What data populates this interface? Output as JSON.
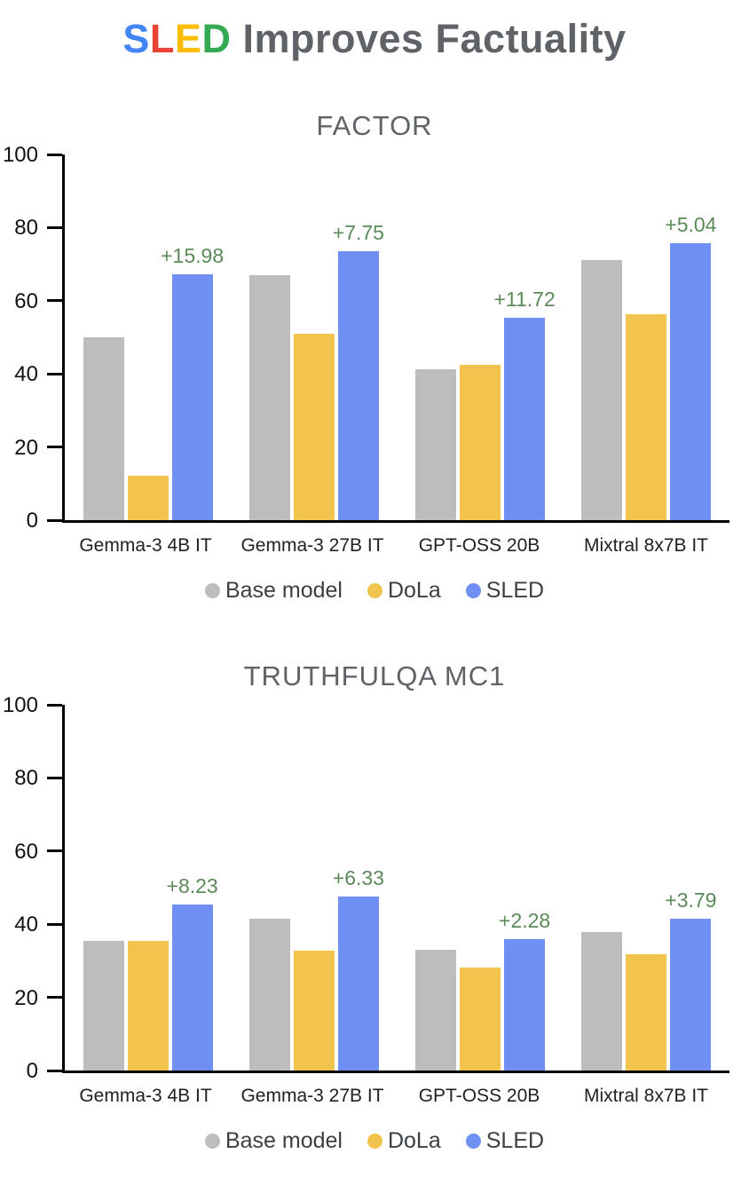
{
  "title": {
    "colored_letters": [
      {
        "char": "S",
        "color": "#4285F4"
      },
      {
        "char": "L",
        "color": "#EA4335"
      },
      {
        "char": "E",
        "color": "#FBBC04"
      },
      {
        "char": "D",
        "color": "#34A853"
      }
    ],
    "rest": " Improves Factuality"
  },
  "colors": {
    "base": "#BDBDBD",
    "dola": "#F2C44D",
    "sled": "#6F8FF2",
    "annotation": "#5B8A58",
    "axis": "#000000",
    "title_text": "#5F6368"
  },
  "legend": [
    {
      "label": "Base model",
      "color_key": "base"
    },
    {
      "label": "DoLa",
      "color_key": "dola"
    },
    {
      "label": "SLED",
      "color_key": "sled"
    }
  ],
  "chart_data": [
    {
      "type": "bar",
      "title": "FACTOR",
      "categories": [
        "Gemma-3 4B IT",
        "Gemma-3 27B IT",
        "GPT-OSS 20B",
        "Mixtral 8x7B IT"
      ],
      "series": [
        {
          "name": "Base model",
          "values": [
            50.1,
            67.1,
            41.2,
            71.0
          ]
        },
        {
          "name": "DoLa",
          "values": [
            12.2,
            51.0,
            42.6,
            56.4
          ]
        },
        {
          "name": "SLED",
          "values": [
            67.2,
            73.6,
            55.4,
            75.8
          ]
        }
      ],
      "annotations": [
        "+15.98",
        "+7.75",
        "+11.72",
        "+5.04"
      ],
      "xlabel": "",
      "ylabel": "",
      "ylim": [
        0,
        100
      ],
      "yticks": [
        0,
        20,
        40,
        60,
        80,
        100
      ],
      "grid": false,
      "legend_position": "bottom"
    },
    {
      "type": "bar",
      "title": "TRUTHFULQA MC1",
      "categories": [
        "Gemma-3 4B IT",
        "Gemma-3 27B IT",
        "GPT-OSS 20B",
        "Mixtral 8x7B IT"
      ],
      "series": [
        {
          "name": "Base model",
          "values": [
            35.4,
            41.4,
            33.0,
            37.8
          ]
        },
        {
          "name": "DoLa",
          "values": [
            35.4,
            32.8,
            28.2,
            31.8
          ]
        },
        {
          "name": "SLED",
          "values": [
            45.5,
            47.6,
            35.9,
            41.6
          ]
        }
      ],
      "annotations": [
        "+8.23",
        "+6.33",
        "+2.28",
        "+3.79"
      ],
      "xlabel": "",
      "ylabel": "",
      "ylim": [
        0,
        100
      ],
      "yticks": [
        0,
        20,
        40,
        60,
        80,
        100
      ],
      "grid": false,
      "legend_position": "bottom"
    }
  ]
}
